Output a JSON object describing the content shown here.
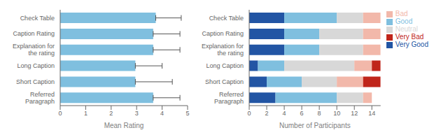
{
  "chart_data": [
    {
      "type": "bar",
      "orientation": "horizontal",
      "categories": [
        "Check Table",
        "Caption Rating",
        "Explanation for\nthe rating",
        "Long Caption",
        "Short Caption",
        "Referred\nParagraph"
      ],
      "values": [
        3.75,
        3.65,
        3.65,
        2.95,
        2.95,
        3.65
      ],
      "error_lo": [
        0.0,
        0.0,
        0.0,
        0.0,
        0.0,
        0.0
      ],
      "error_hi": [
        1.0,
        1.05,
        1.05,
        1.05,
        1.45,
        1.05
      ],
      "color": "#7fbfdf",
      "xlabel": "Mean Rating",
      "xlim": [
        0,
        5
      ],
      "xticks": [
        0,
        1,
        2,
        3,
        4,
        5
      ],
      "grid": false
    },
    {
      "type": "bar",
      "orientation": "horizontal",
      "stacked": true,
      "categories": [
        "Check Table",
        "Caption Rating",
        "Explanation for\nthe rating",
        "Long Caption",
        "Short Caption",
        "Referred\nParagraph"
      ],
      "series": [
        {
          "name": "Very Good",
          "color": "#2255a4",
          "values": [
            4,
            4,
            4,
            1,
            2,
            3
          ]
        },
        {
          "name": "Good",
          "color": "#7fbfdf",
          "values": [
            6,
            4,
            4,
            3,
            4,
            7
          ]
        },
        {
          "name": "Neutral",
          "color": "#d8d8d8",
          "values": [
            3,
            5,
            5,
            8,
            4,
            3
          ]
        },
        {
          "name": "Bad",
          "color": "#f2b8aa",
          "values": [
            2,
            2,
            2,
            2,
            3,
            1
          ]
        },
        {
          "name": "Very Bad",
          "color": "#c0251a",
          "values": [
            0,
            0,
            0,
            1,
            2,
            0
          ]
        }
      ],
      "xlabel": "Number of Participants",
      "xlim": [
        0,
        15
      ],
      "xticks": [
        0,
        2,
        4,
        6,
        8,
        10,
        12,
        14
      ],
      "grid": false,
      "legend": "right"
    }
  ]
}
